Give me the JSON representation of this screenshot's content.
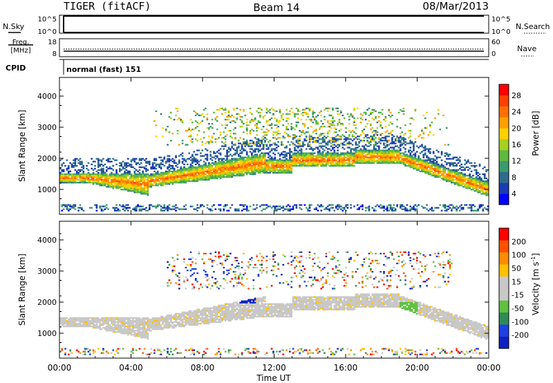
{
  "header": {
    "title": "TIGER (fitACF)",
    "beam": "Beam 14",
    "date": "08/Mar/2013"
  },
  "summary_panels": {
    "nsky": {
      "label": "N.Sky",
      "ticks_left": [
        "10^5",
        "10^0"
      ],
      "ticks_right": [
        "10^5",
        "10^0"
      ],
      "right_label": "N.Search"
    },
    "freq": {
      "label_line1": "Freq.",
      "label_line2": "[MHz]",
      "ticks_left": [
        "18",
        "8"
      ],
      "ticks_right": [
        "60",
        "0"
      ],
      "right_label": "Nave"
    },
    "cpid": {
      "label": "CPID",
      "value": "normal (fast) 151"
    }
  },
  "chart_data": [
    {
      "type": "heatmap",
      "title": "",
      "xlabel": "",
      "ylabel": "Slant Range [km]",
      "quantity": "Power",
      "xlim": [
        0,
        24
      ],
      "ylim": [
        200,
        4600
      ],
      "y_ticks": [
        1000,
        2000,
        3000,
        4000
      ],
      "x_ticks": [
        0,
        4,
        8,
        12,
        16,
        20,
        24
      ],
      "colorbar": {
        "label": "Power [dB]",
        "ticks": [
          "4",
          "8",
          "12",
          "16",
          "20",
          "24",
          "28"
        ],
        "levels": [
          "#0000ff",
          "#1a3cb0",
          "#2e6b8c",
          "#3a9b6e",
          "#5fb940",
          "#a8d020",
          "#ffd000",
          "#ffa000",
          "#ff7000",
          "#ff4000",
          "#ff0000"
        ]
      }
    },
    {
      "type": "heatmap",
      "title": "",
      "xlabel": "Time UT",
      "ylabel": "Slant Range [km]",
      "quantity": "Velocity",
      "xlim": [
        0,
        24
      ],
      "ylim": [
        200,
        4600
      ],
      "y_ticks": [
        1000,
        2000,
        3000,
        4000
      ],
      "x_ticks": [
        0,
        4,
        8,
        12,
        16,
        20,
        24
      ],
      "x_tick_labels": [
        "00:00",
        "04:00",
        "08:00",
        "12:00",
        "16:00",
        "20:00",
        "00:00"
      ],
      "colorbar": {
        "label": "Velocity [m s^-1]",
        "ticks": [
          "200",
          "100",
          "50",
          "15",
          "-15",
          "-50",
          "-100",
          "-200"
        ],
        "levels": [
          "#1020c0",
          "#2040e0",
          "#2e8b57",
          "#60c040",
          "#c8c8c8",
          "#c8c8c8",
          "#ffc000",
          "#ff8c00",
          "#ff5000",
          "#ff0000"
        ]
      }
    }
  ]
}
